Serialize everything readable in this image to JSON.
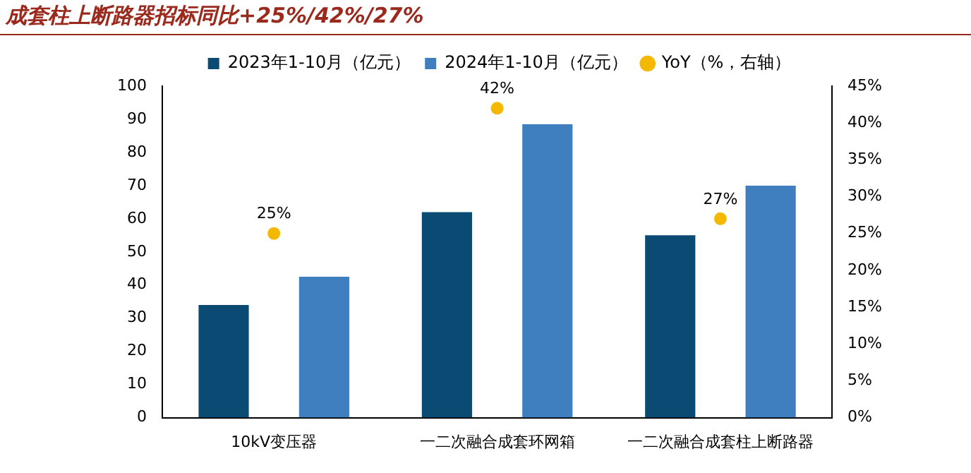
{
  "chart_data": {
    "type": "bar",
    "title": "成套柱上断路器招标同比+25%/42%/27%",
    "categories": [
      "10kV变压器",
      "一二次融合成套环网箱",
      "一二次融合成套柱上断路器"
    ],
    "series": [
      {
        "name": "2023年1-10月（亿元）",
        "color": "#0b4a72",
        "values": [
          34,
          62,
          55
        ]
      },
      {
        "name": "2024年1-10月（亿元）",
        "color": "#3f7fc0",
        "values": [
          42.5,
          88.5,
          70
        ]
      },
      {
        "name": "YoY（%，右轴）",
        "type": "scatter",
        "axis": "y2",
        "color": "#f5b800",
        "values": [
          25,
          42,
          27
        ],
        "value_labels": [
          "25%",
          "42%",
          "27%"
        ]
      }
    ],
    "ylim": [
      0,
      100
    ],
    "yticks": [
      0,
      10,
      20,
      30,
      40,
      50,
      60,
      70,
      80,
      90,
      100
    ],
    "y2lim": [
      0,
      45
    ],
    "y2ticks": [
      {
        "value": 0,
        "label": "0%"
      },
      {
        "value": 5,
        "label": "5%"
      },
      {
        "value": 10,
        "label": "10%"
      },
      {
        "value": 15,
        "label": "15%"
      },
      {
        "value": 20,
        "label": "20%"
      },
      {
        "value": 25,
        "label": "25%"
      },
      {
        "value": 30,
        "label": "30%"
      },
      {
        "value": 35,
        "label": "35%"
      },
      {
        "value": 40,
        "label": "40%"
      },
      {
        "value": 45,
        "label": "45%"
      }
    ],
    "grid": false,
    "legend": "top",
    "marker": "circle"
  }
}
